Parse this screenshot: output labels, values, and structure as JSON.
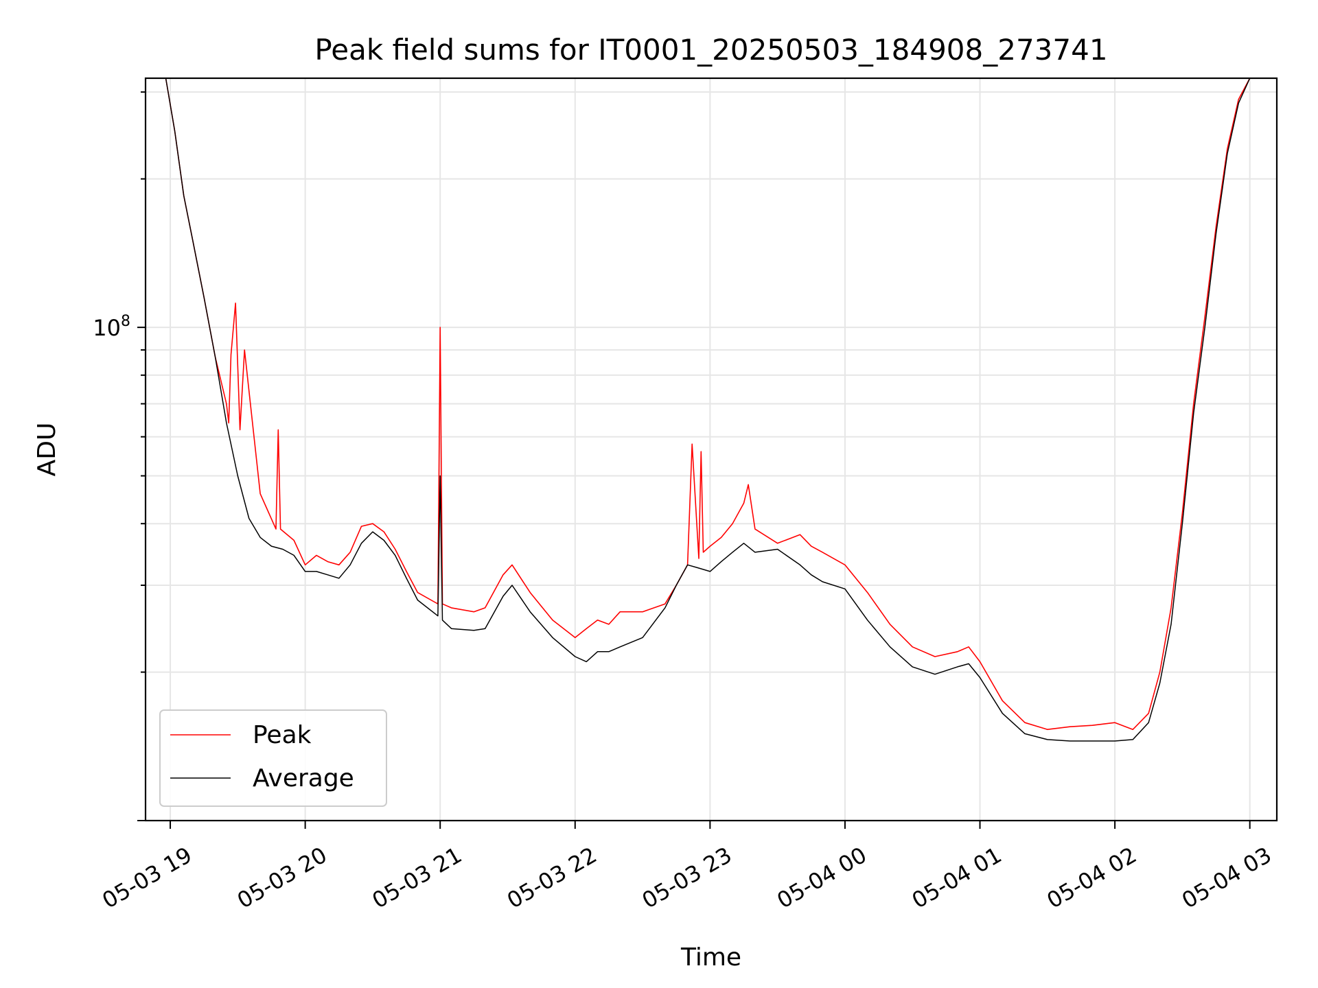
{
  "chart_data": {
    "type": "line",
    "title": "Peak field sums for IT0001_20250503_184908_273741",
    "xlabel": "Time",
    "ylabel": "ADU",
    "y_scale": "log",
    "ylim": [
      10000000,
      320000000
    ],
    "xlim": [
      "2025-05-03 18:49",
      "2025-05-04 03:12"
    ],
    "grid": true,
    "legend_position": "lower-left",
    "x_ticks": [
      {
        "t": "2025-05-03 19:00",
        "label": "05-03 19"
      },
      {
        "t": "2025-05-03 20:00",
        "label": "05-03 20"
      },
      {
        "t": "2025-05-03 21:00",
        "label": "05-03 21"
      },
      {
        "t": "2025-05-03 22:00",
        "label": "05-03 22"
      },
      {
        "t": "2025-05-03 23:00",
        "label": "05-03 23"
      },
      {
        "t": "2025-05-04 00:00",
        "label": "05-04 00"
      },
      {
        "t": "2025-05-04 01:00",
        "label": "05-04 01"
      },
      {
        "t": "2025-05-04 02:00",
        "label": "05-04 02"
      },
      {
        "t": "2025-05-04 03:00",
        "label": "05-04 03"
      }
    ],
    "y_major_tick": {
      "value": 100000000,
      "base": "10",
      "exp": "8"
    },
    "series": [
      {
        "name": "Peak",
        "color": "#ff0000",
        "x": [
          "2025-05-03 18:49",
          "2025-05-03 18:58",
          "2025-05-03 19:02",
          "2025-05-03 19:06",
          "2025-05-03 19:10",
          "2025-05-03 19:15",
          "2025-05-03 19:20",
          "2025-05-03 19:25",
          "2025-05-03 19:26",
          "2025-05-03 19:27",
          "2025-05-03 19:29",
          "2025-05-03 19:31",
          "2025-05-03 19:33",
          "2025-05-03 19:40",
          "2025-05-03 19:47",
          "2025-05-03 19:48",
          "2025-05-03 19:49",
          "2025-05-03 19:55",
          "2025-05-03 20:00",
          "2025-05-03 20:05",
          "2025-05-03 20:10",
          "2025-05-03 20:15",
          "2025-05-03 20:20",
          "2025-05-03 20:25",
          "2025-05-03 20:30",
          "2025-05-03 20:35",
          "2025-05-03 20:40",
          "2025-05-03 20:45",
          "2025-05-03 20:50",
          "2025-05-03 20:59",
          "2025-05-03 21:00",
          "2025-05-03 21:01",
          "2025-05-03 21:05",
          "2025-05-03 21:15",
          "2025-05-03 21:20",
          "2025-05-03 21:28",
          "2025-05-03 21:32",
          "2025-05-03 21:40",
          "2025-05-03 21:50",
          "2025-05-03 22:00",
          "2025-05-03 22:05",
          "2025-05-03 22:10",
          "2025-05-03 22:15",
          "2025-05-03 22:20",
          "2025-05-03 22:30",
          "2025-05-03 22:40",
          "2025-05-03 22:45",
          "2025-05-03 22:50",
          "2025-05-03 22:52",
          "2025-05-03 22:55",
          "2025-05-03 22:56",
          "2025-05-03 22:57",
          "2025-05-03 23:00",
          "2025-05-03 23:05",
          "2025-05-03 23:10",
          "2025-05-03 23:15",
          "2025-05-03 23:17",
          "2025-05-03 23:20",
          "2025-05-03 23:30",
          "2025-05-03 23:40",
          "2025-05-03 23:45",
          "2025-05-03 23:50",
          "2025-05-04 00:00",
          "2025-05-04 00:10",
          "2025-05-04 00:20",
          "2025-05-04 00:30",
          "2025-05-04 00:40",
          "2025-05-04 00:50",
          "2025-05-04 00:55",
          "2025-05-04 01:00",
          "2025-05-04 01:10",
          "2025-05-04 01:20",
          "2025-05-04 01:30",
          "2025-05-04 01:40",
          "2025-05-04 01:50",
          "2025-05-04 02:00",
          "2025-05-04 02:08",
          "2025-05-04 02:15",
          "2025-05-04 02:20",
          "2025-05-04 02:25",
          "2025-05-04 02:30",
          "2025-05-04 02:35",
          "2025-05-04 02:40",
          "2025-05-04 02:45",
          "2025-05-04 02:50",
          "2025-05-04 02:55",
          "2025-05-04 03:00",
          "2025-05-04 03:05",
          "2025-05-04 03:12"
        ],
        "y": [
          320000000,
          320000000,
          250000000,
          185000000,
          150000000,
          115000000,
          87000000,
          70000000,
          64000000,
          88000000,
          112000000,
          62000000,
          90000000,
          46000000,
          39000000,
          62000000,
          39000000,
          37000000,
          33000000,
          34500000,
          33500000,
          33000000,
          35000000,
          39500000,
          40000000,
          38500000,
          35500000,
          32000000,
          29000000,
          27500000,
          100000000,
          27500000,
          27000000,
          26500000,
          27000000,
          31500000,
          33000000,
          29000000,
          25500000,
          23500000,
          24500000,
          25500000,
          25000000,
          26500000,
          26500000,
          27500000,
          30000000,
          33000000,
          58000000,
          34000000,
          56000000,
          35000000,
          36000000,
          37500000,
          40000000,
          44000000,
          48000000,
          39000000,
          36500000,
          38000000,
          36000000,
          35000000,
          33000000,
          29000000,
          25000000,
          22500000,
          21500000,
          22000000,
          22500000,
          21000000,
          17500000,
          15800000,
          15300000,
          15500000,
          15600000,
          15800000,
          15300000,
          16500000,
          20000000,
          27000000,
          42000000,
          70000000,
          105000000,
          160000000,
          230000000,
          290000000,
          320000000,
          320000000,
          320000000
        ]
      },
      {
        "name": "Average",
        "color": "#000000",
        "x": [
          "2025-05-03 18:49",
          "2025-05-03 18:58",
          "2025-05-03 19:02",
          "2025-05-03 19:06",
          "2025-05-03 19:10",
          "2025-05-03 19:15",
          "2025-05-03 19:20",
          "2025-05-03 19:25",
          "2025-05-03 19:30",
          "2025-05-03 19:35",
          "2025-05-03 19:40",
          "2025-05-03 19:45",
          "2025-05-03 19:50",
          "2025-05-03 19:55",
          "2025-05-03 20:00",
          "2025-05-03 20:05",
          "2025-05-03 20:10",
          "2025-05-03 20:15",
          "2025-05-03 20:20",
          "2025-05-03 20:25",
          "2025-05-03 20:30",
          "2025-05-03 20:35",
          "2025-05-03 20:40",
          "2025-05-03 20:45",
          "2025-05-03 20:50",
          "2025-05-03 20:59",
          "2025-05-03 21:00",
          "2025-05-03 21:01",
          "2025-05-03 21:05",
          "2025-05-03 21:15",
          "2025-05-03 21:20",
          "2025-05-03 21:28",
          "2025-05-03 21:32",
          "2025-05-03 21:40",
          "2025-05-03 21:50",
          "2025-05-03 22:00",
          "2025-05-03 22:05",
          "2025-05-03 22:10",
          "2025-05-03 22:15",
          "2025-05-03 22:20",
          "2025-05-03 22:30",
          "2025-05-03 22:40",
          "2025-05-03 22:45",
          "2025-05-03 22:50",
          "2025-05-03 22:55",
          "2025-05-03 23:00",
          "2025-05-03 23:05",
          "2025-05-03 23:10",
          "2025-05-03 23:15",
          "2025-05-03 23:20",
          "2025-05-03 23:30",
          "2025-05-03 23:40",
          "2025-05-03 23:45",
          "2025-05-03 23:50",
          "2025-05-04 00:00",
          "2025-05-04 00:10",
          "2025-05-04 00:20",
          "2025-05-04 00:30",
          "2025-05-04 00:40",
          "2025-05-04 00:50",
          "2025-05-04 00:55",
          "2025-05-04 01:00",
          "2025-05-04 01:10",
          "2025-05-04 01:20",
          "2025-05-04 01:30",
          "2025-05-04 01:40",
          "2025-05-04 01:50",
          "2025-05-04 02:00",
          "2025-05-04 02:08",
          "2025-05-04 02:15",
          "2025-05-04 02:20",
          "2025-05-04 02:25",
          "2025-05-04 02:30",
          "2025-05-04 02:35",
          "2025-05-04 02:40",
          "2025-05-04 02:45",
          "2025-05-04 02:50",
          "2025-05-04 02:55",
          "2025-05-04 03:00",
          "2025-05-04 03:05",
          "2025-05-04 03:12"
        ],
        "y": [
          320000000,
          320000000,
          250000000,
          185000000,
          150000000,
          115000000,
          87000000,
          64000000,
          50000000,
          41000000,
          37500000,
          36000000,
          35500000,
          34500000,
          32000000,
          32000000,
          31500000,
          31000000,
          33000000,
          36500000,
          38500000,
          37000000,
          34500000,
          31000000,
          28000000,
          26000000,
          50000000,
          25500000,
          24500000,
          24300000,
          24500000,
          28500000,
          30000000,
          26500000,
          23500000,
          21500000,
          21000000,
          22000000,
          22000000,
          22500000,
          23500000,
          27000000,
          30000000,
          33000000,
          32500000,
          32000000,
          33500000,
          35000000,
          36500000,
          35000000,
          35500000,
          33000000,
          31500000,
          30500000,
          29500000,
          25500000,
          22500000,
          20500000,
          19800000,
          20500000,
          20800000,
          19500000,
          16500000,
          15000000,
          14600000,
          14500000,
          14500000,
          14500000,
          14600000,
          15800000,
          19000000,
          25000000,
          40000000,
          67000000,
          100000000,
          155000000,
          225000000,
          285000000,
          320000000,
          320000000,
          320000000
        ]
      }
    ]
  }
}
